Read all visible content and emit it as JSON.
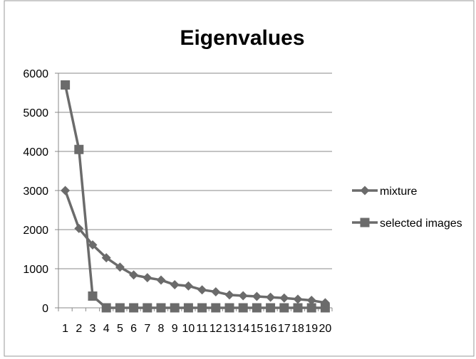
{
  "chart_data": {
    "type": "line",
    "title": "Eigenvalues",
    "xlabel": "",
    "ylabel": "",
    "categories": [
      "1",
      "2",
      "3",
      "4",
      "5",
      "6",
      "7",
      "8",
      "9",
      "10",
      "11",
      "12",
      "13",
      "14",
      "15",
      "16",
      "17",
      "18",
      "19",
      "20"
    ],
    "ylim": [
      0,
      6000
    ],
    "yticks": [
      0,
      1000,
      2000,
      3000,
      4000,
      5000,
      6000
    ],
    "grid": true,
    "legend_position": "right",
    "series": [
      {
        "name": "mixture",
        "marker": "diamond",
        "color": "#6b6b6b",
        "values": [
          3000,
          2030,
          1610,
          1280,
          1040,
          840,
          770,
          710,
          590,
          560,
          460,
          410,
          330,
          310,
          290,
          270,
          250,
          220,
          190,
          130
        ]
      },
      {
        "name": "selected images",
        "marker": "square",
        "color": "#6b6b6b",
        "values": [
          5700,
          4050,
          300,
          0,
          0,
          0,
          0,
          0,
          0,
          0,
          0,
          0,
          0,
          0,
          0,
          0,
          0,
          0,
          0,
          0
        ]
      }
    ]
  }
}
